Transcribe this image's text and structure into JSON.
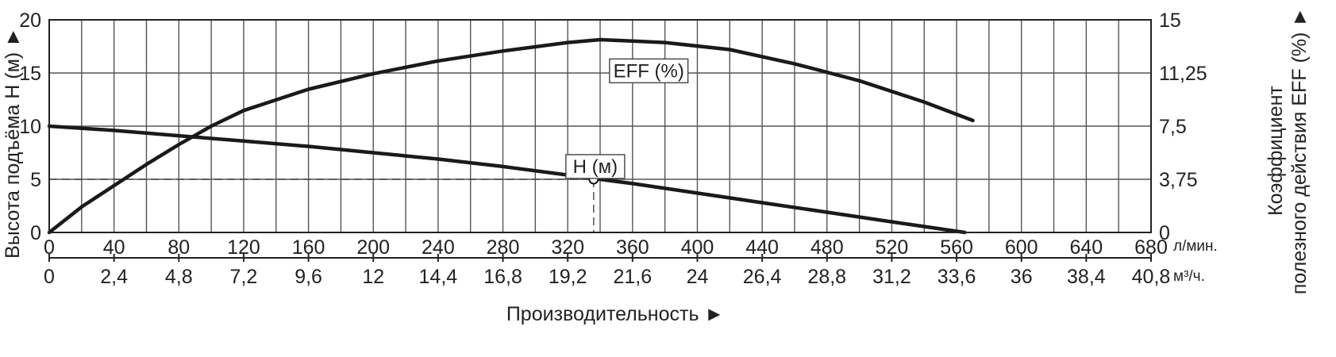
{
  "chart_data": {
    "type": "line",
    "x_primary": {
      "ticks": [
        "0",
        "40",
        "80",
        "120",
        "160",
        "200",
        "240",
        "280",
        "320",
        "360",
        "400",
        "440",
        "480",
        "520",
        "560",
        "600",
        "640",
        "680"
      ],
      "unit": "л/мин.",
      "range": [
        0,
        680
      ]
    },
    "x_secondary": {
      "ticks": [
        "0",
        "2,4",
        "4,8",
        "7,2",
        "9,6",
        "12",
        "14,4",
        "16,8",
        "19,2",
        "21,6",
        "24",
        "26,4",
        "28,8",
        "31,2",
        "33,6",
        "36",
        "38,4",
        "40,8"
      ],
      "unit": "м³/ч."
    },
    "xlabel": "Производительность ►",
    "y_left": {
      "label": "Высота подъёма H (м) ►",
      "ticks": [
        "0",
        "5",
        "10",
        "15",
        "20"
      ],
      "range": [
        0,
        20
      ]
    },
    "y_right": {
      "label_line1": "Коэффициент",
      "label_line2": "полезного действия EFF (%) ►",
      "ticks": [
        "0",
        "3,75",
        "7,5",
        "11,25",
        "15"
      ],
      "range": [
        0,
        15
      ]
    },
    "grid": true,
    "series": [
      {
        "name": "H (м)",
        "axis": "left",
        "x": [
          0,
          40,
          80,
          120,
          160,
          200,
          240,
          280,
          320,
          360,
          400,
          440,
          480,
          520,
          565
        ],
        "y": [
          10.0,
          9.6,
          9.1,
          8.6,
          8.1,
          7.5,
          6.9,
          6.2,
          5.4,
          4.6,
          3.7,
          2.8,
          1.9,
          1.0,
          0.0
        ]
      },
      {
        "name": "EFF (%)",
        "axis": "right",
        "x": [
          0,
          20,
          40,
          60,
          80,
          100,
          120,
          160,
          200,
          240,
          280,
          320,
          340,
          360,
          380,
          420,
          460,
          500,
          540,
          570
        ],
        "y": [
          0.0,
          1.8,
          3.3,
          4.8,
          6.2,
          7.5,
          8.6,
          10.1,
          11.2,
          12.1,
          12.8,
          13.4,
          13.6,
          13.5,
          13.4,
          12.9,
          11.9,
          10.7,
          9.2,
          7.9
        ]
      }
    ],
    "operating_point": {
      "x": 336,
      "y": 5
    }
  }
}
